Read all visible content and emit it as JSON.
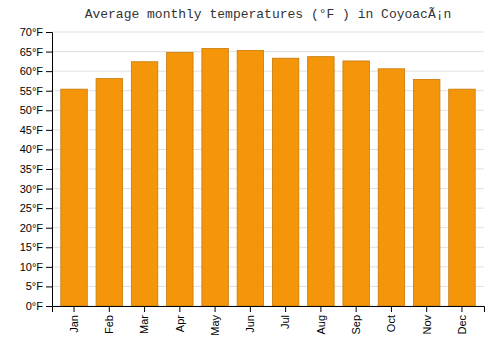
{
  "chart_data": {
    "type": "bar",
    "title": "Average monthly temperatures (°F ) in CoyoacÃ¡n",
    "categories": [
      "Jan",
      "Feb",
      "Mar",
      "Apr",
      "May",
      "Jun",
      "Jul",
      "Aug",
      "Sep",
      "Oct",
      "Nov",
      "Dec"
    ],
    "values": [
      55.4,
      58.1,
      62.4,
      64.8,
      65.8,
      65.3,
      63.3,
      63.7,
      62.6,
      60.6,
      57.9,
      55.4
    ],
    "color": "#F5960A",
    "ylim": [
      0,
      70
    ],
    "yticks": [
      {
        "value": 0,
        "label": "0°F"
      },
      {
        "value": 5,
        "label": "5°F"
      },
      {
        "value": 10,
        "label": "10°F"
      },
      {
        "value": 15,
        "label": "15°F"
      },
      {
        "value": 20,
        "label": "20°F"
      },
      {
        "value": 25,
        "label": "25°F"
      },
      {
        "value": 30,
        "label": "30°F"
      },
      {
        "value": 35,
        "label": "35°F"
      },
      {
        "value": 40,
        "label": "40°F"
      },
      {
        "value": 45,
        "label": "45°F"
      },
      {
        "value": 50,
        "label": "50°F"
      },
      {
        "value": 55,
        "label": "55°F"
      },
      {
        "value": 60,
        "label": "60°F"
      },
      {
        "value": 65,
        "label": "65°F"
      },
      {
        "value": 70,
        "label": "70°F"
      }
    ],
    "grid": true
  }
}
